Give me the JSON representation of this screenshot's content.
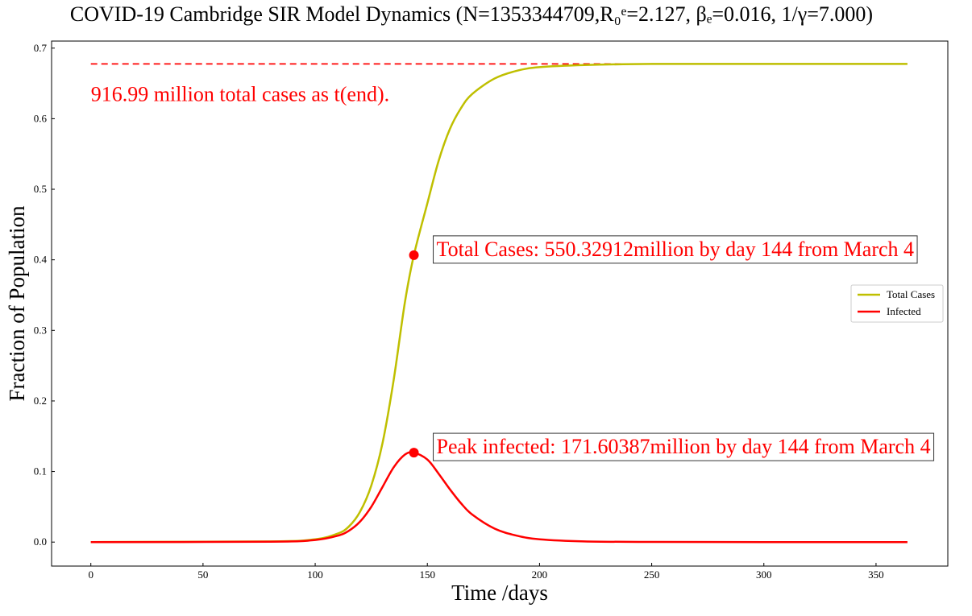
{
  "chart_data": {
    "type": "line",
    "title": "COVID-19 Cambridge SIR Model Dynamics (N=1353344709,R₀ᵉ=2.127, βₑ=0.016, 1/γ=7.000)",
    "xlabel": "Time /days",
    "ylabel": "Fraction of Population",
    "xlim": [
      -17.5,
      382
    ],
    "ylim": [
      -0.034,
      0.71
    ],
    "x_ticks": [
      0,
      50,
      100,
      150,
      200,
      250,
      300,
      350
    ],
    "y_ticks": [
      0.0,
      0.1,
      0.2,
      0.3,
      0.4,
      0.5,
      0.6,
      0.7
    ],
    "x_tick_labels": [
      "0",
      "50",
      "100",
      "150",
      "200",
      "250",
      "300",
      "350"
    ],
    "y_tick_labels": [
      "0.0",
      "0.1",
      "0.2",
      "0.3",
      "0.4",
      "0.5",
      "0.6",
      "0.7"
    ],
    "grid": false,
    "legend_placement": "center-right",
    "model": {
      "population": 1353344709,
      "R0_effective": 2.127,
      "beta_effective": 0.016,
      "recovery_period_days": 7.0,
      "days": 364
    },
    "series": [
      {
        "name": "Total Cases",
        "color": "#bfbf00",
        "x": [
          0,
          80,
          100,
          110,
          115,
          120,
          125,
          130,
          135,
          140,
          144,
          150,
          155,
          160,
          165,
          170,
          180,
          190,
          200,
          220,
          250,
          300,
          364
        ],
        "values": [
          0.0,
          0.001,
          0.004,
          0.012,
          0.022,
          0.043,
          0.08,
          0.14,
          0.23,
          0.34,
          0.4066,
          0.48,
          0.54,
          0.585,
          0.615,
          0.635,
          0.657,
          0.668,
          0.673,
          0.676,
          0.6776,
          0.6776,
          0.6776
        ]
      },
      {
        "name": "Infected",
        "color": "#ff0000",
        "x": [
          0,
          80,
          100,
          110,
          115,
          120,
          125,
          130,
          135,
          140,
          144,
          150,
          155,
          160,
          165,
          170,
          180,
          190,
          200,
          220,
          250,
          300,
          364
        ],
        "values": [
          0.0,
          0.0005,
          0.003,
          0.009,
          0.016,
          0.029,
          0.05,
          0.078,
          0.106,
          0.124,
          0.1268,
          0.117,
          0.097,
          0.075,
          0.055,
          0.039,
          0.019,
          0.009,
          0.004,
          0.001,
          0.0002,
          0.0,
          0.0
        ]
      }
    ],
    "reference_lines": [
      {
        "type": "hline",
        "y": 0.6776,
        "x_from": 0,
        "x_to": 364,
        "style": "dashed",
        "color": "#ff0000"
      }
    ],
    "markers": [
      {
        "x": 144,
        "y": 0.4066,
        "color": "#ff0000"
      },
      {
        "x": 144,
        "y": 0.1268,
        "color": "#ff0000"
      }
    ],
    "annotations": [
      {
        "text": "916.99 million total cases as t(end).",
        "anchor_x": 0,
        "anchor_y": 0.6776,
        "boxed": false
      },
      {
        "text": "Total Cases: 550.32912million by day 144 from March 4",
        "anchor_x": 144,
        "anchor_y": 0.4066,
        "boxed": true
      },
      {
        "text": "Peak infected: 171.60387million by day 144 from March 4",
        "anchor_x": 144,
        "anchor_y": 0.1268,
        "boxed": true
      }
    ]
  }
}
